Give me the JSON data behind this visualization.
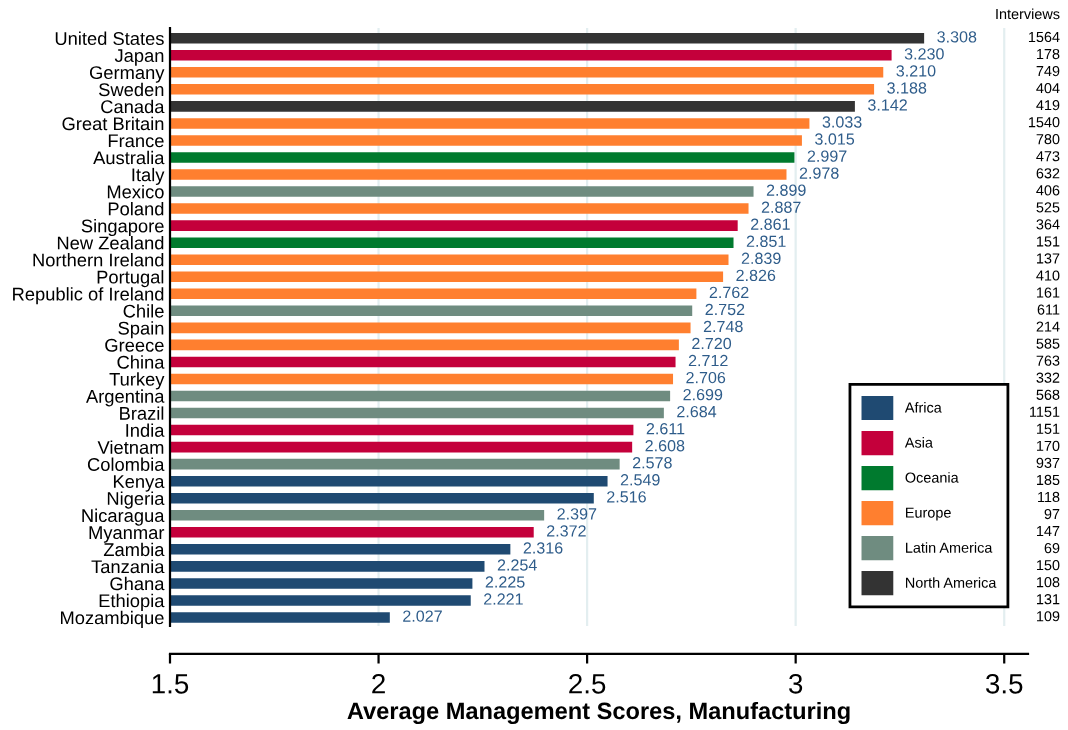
{
  "chart_data": {
    "type": "bar",
    "orientation": "horizontal",
    "xlabel": "Average Management Scores, Manufacturing",
    "categories": [
      "United States",
      "Japan",
      "Germany",
      "Sweden",
      "Canada",
      "Great Britain",
      "France",
      "Australia",
      "Italy",
      "Mexico",
      "Poland",
      "Singapore",
      "New Zealand",
      "Northern Ireland",
      "Portugal",
      "Republic of Ireland",
      "Chile",
      "Spain",
      "Greece",
      "China",
      "Turkey",
      "Argentina",
      "Brazil",
      "India",
      "Vietnam",
      "Colombia",
      "Kenya",
      "Nigeria",
      "Nicaragua",
      "Myanmar",
      "Zambia",
      "Tanzania",
      "Ghana",
      "Ethiopia",
      "Mozambique"
    ],
    "series": [
      {
        "name": "Africa",
        "color": "#1f4a72",
        "values": [
          null,
          null,
          null,
          null,
          null,
          null,
          null,
          null,
          null,
          null,
          null,
          null,
          null,
          null,
          null,
          null,
          null,
          null,
          null,
          null,
          null,
          null,
          null,
          null,
          null,
          null,
          2.549,
          2.516,
          null,
          null,
          2.316,
          2.254,
          2.225,
          2.221,
          2.027
        ]
      },
      {
        "name": "Asia",
        "color": "#c4003b",
        "values": [
          null,
          3.23,
          null,
          null,
          null,
          null,
          null,
          null,
          null,
          null,
          null,
          2.861,
          null,
          null,
          null,
          null,
          null,
          null,
          null,
          2.712,
          null,
          null,
          null,
          2.611,
          2.608,
          null,
          null,
          null,
          null,
          2.372,
          null,
          null,
          null,
          null,
          null
        ]
      },
      {
        "name": "Oceania",
        "color": "#007a2e",
        "values": [
          null,
          null,
          null,
          null,
          null,
          null,
          null,
          2.997,
          null,
          null,
          null,
          null,
          2.851,
          null,
          null,
          null,
          null,
          null,
          null,
          null,
          null,
          null,
          null,
          null,
          null,
          null,
          null,
          null,
          null,
          null,
          null,
          null,
          null,
          null,
          null
        ]
      },
      {
        "name": "Europe",
        "color": "#ff7f2f",
        "values": [
          null,
          null,
          3.21,
          3.188,
          null,
          3.033,
          3.015,
          null,
          2.978,
          null,
          2.887,
          null,
          null,
          2.839,
          2.826,
          2.762,
          null,
          2.748,
          2.72,
          null,
          2.706,
          null,
          null,
          null,
          null,
          null,
          null,
          null,
          null,
          null,
          null,
          null,
          null,
          null,
          null
        ]
      },
      {
        "name": "Latin America",
        "color": "#6f8c80",
        "values": [
          null,
          null,
          null,
          null,
          null,
          null,
          null,
          null,
          null,
          2.899,
          null,
          null,
          null,
          null,
          null,
          null,
          2.752,
          null,
          null,
          null,
          null,
          2.699,
          2.684,
          null,
          null,
          2.578,
          null,
          null,
          2.397,
          null,
          null,
          null,
          null,
          null,
          null
        ]
      },
      {
        "name": "North America",
        "color": "#333333",
        "values": [
          3.308,
          null,
          null,
          null,
          3.142,
          null,
          null,
          null,
          null,
          null,
          null,
          null,
          null,
          null,
          null,
          null,
          null,
          null,
          null,
          null,
          null,
          null,
          null,
          null,
          null,
          null,
          null,
          null,
          null,
          null,
          null,
          null,
          null,
          null,
          null
        ]
      }
    ],
    "value_labels": [
      "3.308",
      "3.230",
      "3.210",
      "3.188",
      "3.142",
      "3.033",
      "3.015",
      "2.997",
      "2.978",
      "2.899",
      "2.887",
      "2.861",
      "2.851",
      "2.839",
      "2.826",
      "2.762",
      "2.752",
      "2.748",
      "2.720",
      "2.712",
      "2.706",
      "2.699",
      "2.684",
      "2.611",
      "2.608",
      "2.578",
      "2.549",
      "2.516",
      "2.397",
      "2.372",
      "2.316",
      "2.254",
      "2.225",
      "2.221",
      "2.027"
    ],
    "annotations": [
      "Interviews",
      "1564",
      "178",
      "749",
      "404",
      "419",
      "1540",
      "780",
      "473",
      "632",
      "406",
      "525",
      "364",
      "151",
      "137",
      "410",
      "161",
      "611",
      "214",
      "585",
      "763",
      "332",
      "568",
      "1151",
      "151",
      "170",
      "937",
      "185",
      "118",
      "97",
      "147",
      "69",
      "150",
      "108",
      "131",
      "109"
    ],
    "xlim": [
      1.5,
      3.557
    ],
    "xticks": [
      1.5,
      2,
      2.5,
      3,
      3.5
    ],
    "grid": "x",
    "legend": "bottom right"
  }
}
